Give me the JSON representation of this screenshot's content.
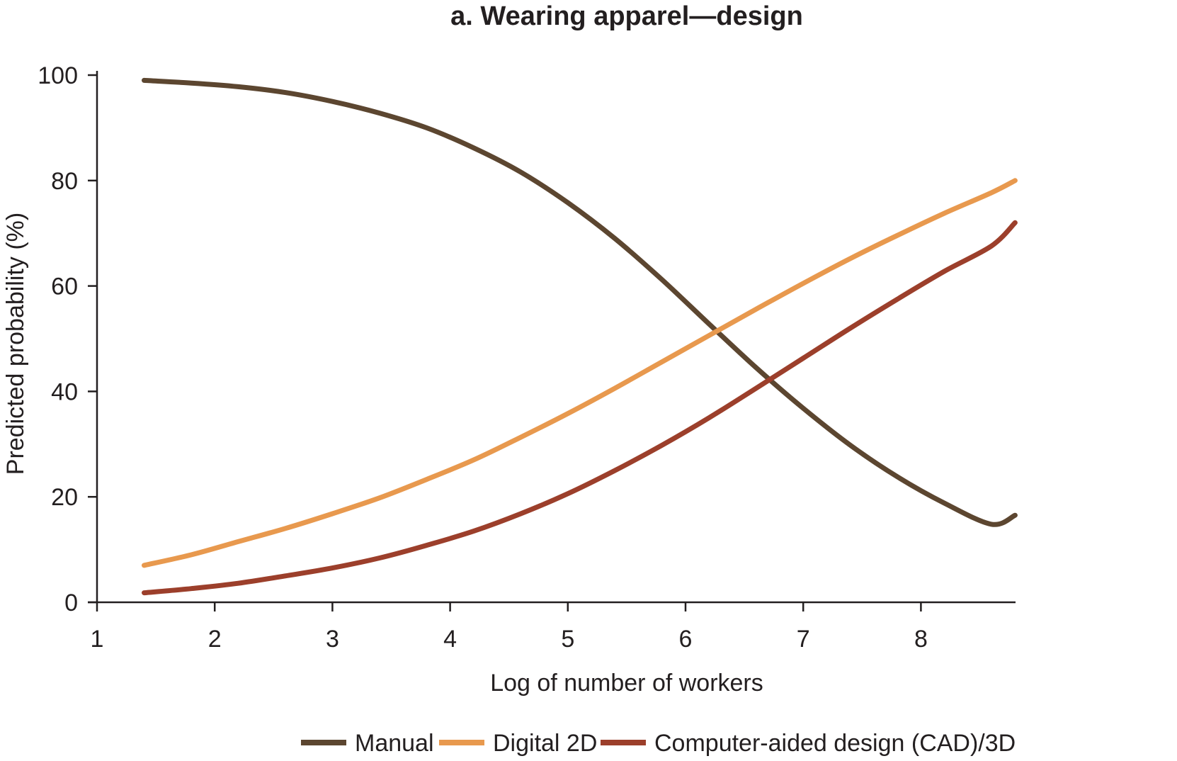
{
  "chart_data": {
    "type": "line",
    "title": "a. Wearing apparel—design",
    "xlabel": "Log of number of workers",
    "ylabel": "Predicted probability (%)",
    "xlim": [
      1,
      8.8
    ],
    "ylim": [
      0,
      100
    ],
    "xticks": [
      1,
      2,
      3,
      4,
      5,
      6,
      7,
      8
    ],
    "yticks": [
      0,
      20,
      40,
      60,
      80,
      100
    ],
    "legend_position": "bottom",
    "grid": false,
    "series": [
      {
        "name": "Manual",
        "color": "#5c4630",
        "x": [
          1.4,
          1.8,
          2.2,
          2.6,
          3.0,
          3.4,
          3.8,
          4.2,
          4.6,
          5.0,
          5.4,
          5.8,
          6.2,
          6.6,
          7.0,
          7.4,
          7.8,
          8.2,
          8.6,
          8.8
        ],
        "y": [
          99,
          98.5,
          97.8,
          96.7,
          95,
          92.8,
          90,
          86.2,
          81.6,
          75.8,
          69,
          61.2,
          52.8,
          44.5,
          36.8,
          29.8,
          23.8,
          18.8,
          14.8,
          16.5
        ]
      },
      {
        "name": "Digital 2D",
        "color": "#e8994e",
        "x": [
          1.4,
          1.8,
          2.2,
          2.6,
          3.0,
          3.4,
          3.8,
          4.2,
          4.6,
          5.0,
          5.4,
          5.8,
          6.2,
          6.6,
          7.0,
          7.4,
          7.8,
          8.2,
          8.6,
          8.8
        ],
        "y": [
          7,
          9,
          11.5,
          14,
          16.8,
          19.8,
          23.3,
          27,
          31.3,
          35.8,
          40.6,
          45.6,
          50.6,
          55.6,
          60.5,
          65.2,
          69.6,
          73.8,
          77.7,
          80
        ]
      },
      {
        "name": "Computer-aided design (CAD)/3D",
        "color": "#9c3f2b",
        "x": [
          1.4,
          1.8,
          2.2,
          2.6,
          3.0,
          3.4,
          3.8,
          4.2,
          4.6,
          5.0,
          5.4,
          5.8,
          6.2,
          6.6,
          7.0,
          7.4,
          7.8,
          8.2,
          8.6,
          8.8
        ],
        "y": [
          1.8,
          2.6,
          3.6,
          5,
          6.5,
          8.4,
          10.8,
          13.5,
          16.8,
          20.6,
          25,
          29.8,
          35,
          40.6,
          46.3,
          52,
          57.5,
          62.8,
          67.6,
          72
        ]
      }
    ]
  }
}
